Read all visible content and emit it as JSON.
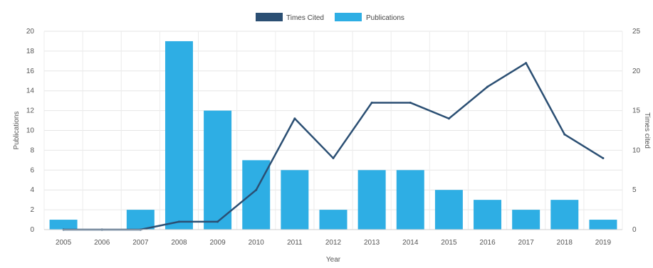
{
  "chart_data": {
    "type": "bar",
    "categories": [
      "2005",
      "2006",
      "2007",
      "2008",
      "2009",
      "2010",
      "2011",
      "2012",
      "2013",
      "2014",
      "2015",
      "2016",
      "2017",
      "2018",
      "2019"
    ],
    "series": [
      {
        "name": "Times Cited",
        "type": "line",
        "axis": "right",
        "color": "#2b4f73",
        "values": [
          0,
          0,
          0,
          1,
          1,
          5,
          14,
          9,
          16,
          16,
          14,
          18,
          21,
          12,
          9
        ]
      },
      {
        "name": "Publications",
        "type": "bar",
        "axis": "left",
        "color": "#2eaee4",
        "values": [
          1,
          0,
          2,
          19,
          12,
          7,
          6,
          2,
          6,
          6,
          4,
          3,
          2,
          3,
          1
        ]
      }
    ],
    "xlabel": "Year",
    "ylabel": "Publications",
    "y2label": "Times cited",
    "ylim": [
      0,
      20
    ],
    "y2lim": [
      0,
      25
    ],
    "yticks": [
      "0",
      "2",
      "4",
      "6",
      "8",
      "10",
      "12",
      "14",
      "16",
      "18",
      "20"
    ],
    "y2ticks": [
      "0",
      "5",
      "10",
      "15",
      "20",
      "25"
    ],
    "grid": true,
    "legend_position": "top-center"
  }
}
